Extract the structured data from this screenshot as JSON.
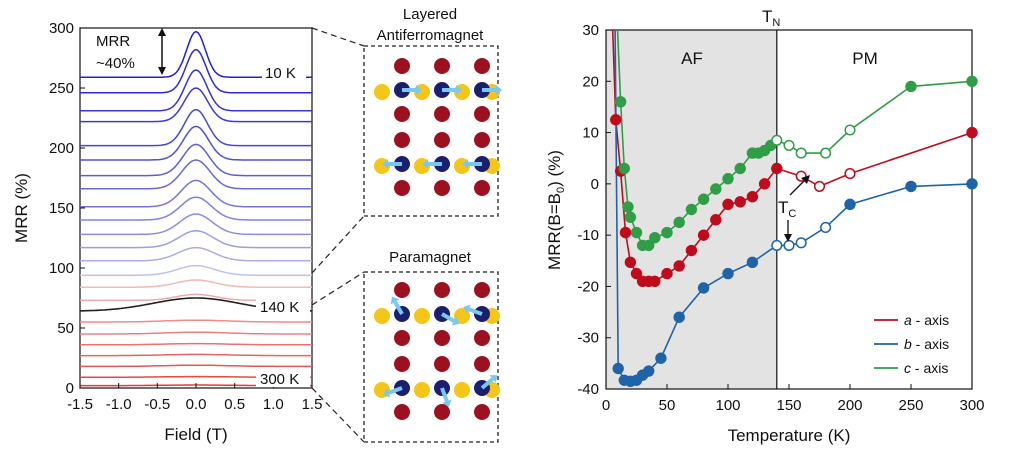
{
  "colors": {
    "red": "#c00b1c",
    "blue": "#1f63a8",
    "green": "#2f9e46",
    "af_shade": "#e3e3e3",
    "sphere_gold": "#f5c518",
    "sphere_navy": "#1a1f6e",
    "sphere_maroon": "#9c1020",
    "arrow_lightblue": "#79c8f0"
  },
  "chart_data": [
    {
      "type": "line",
      "xlabel": "Field (T)",
      "ylabel": "MRR (%)",
      "xlim": [
        -1.5,
        1.5
      ],
      "ylim": [
        0,
        300
      ],
      "xticks": [
        "-1.5",
        "-1.0",
        "-0.5",
        "0.0",
        "0.5",
        "1.0",
        "1.5"
      ],
      "yticks": [
        "0",
        "50",
        "100",
        "150",
        "200",
        "250",
        "300"
      ],
      "annotations": {
        "mrr_label": "MRR\n~40%",
        "label_10k": "10 K",
        "label_140k": "140 K",
        "label_300k": "300 K"
      },
      "series": [
        {
          "baseline": 259,
          "peak": 38,
          "width": 0.12,
          "color": "#2020d8"
        },
        {
          "baseline": 246,
          "peak": 36,
          "width": 0.13,
          "color": "#2a2ad8"
        },
        {
          "baseline": 231,
          "peak": 34,
          "width": 0.14,
          "color": "#3434d8"
        },
        {
          "baseline": 222,
          "peak": 28,
          "width": 0.15,
          "color": "#3b3bd6"
        },
        {
          "baseline": 202,
          "peak": 30,
          "width": 0.15,
          "color": "#4646d8"
        },
        {
          "baseline": 190,
          "peak": 28,
          "width": 0.16,
          "color": "#5050da"
        },
        {
          "baseline": 177,
          "peak": 26,
          "width": 0.17,
          "color": "#5c5cdc"
        },
        {
          "baseline": 166,
          "peak": 24,
          "width": 0.18,
          "color": "#6767de"
        },
        {
          "baseline": 151,
          "peak": 22,
          "width": 0.19,
          "color": "#7373e0"
        },
        {
          "baseline": 140,
          "peak": 19,
          "width": 0.2,
          "color": "#8080e2"
        },
        {
          "baseline": 128,
          "peak": 17,
          "width": 0.21,
          "color": "#8d8de6"
        },
        {
          "baseline": 117,
          "peak": 14,
          "width": 0.22,
          "color": "#9c9cea"
        },
        {
          "baseline": 106,
          "peak": 11,
          "width": 0.23,
          "color": "#ababee"
        },
        {
          "baseline": 94,
          "peak": 8,
          "width": 0.24,
          "color": "#c0c0f2"
        },
        {
          "baseline": 84,
          "peak": 6,
          "width": 0.25,
          "color": "#f2b8b8"
        },
        {
          "baseline": 73,
          "peak": 5,
          "width": 0.26,
          "color": "#eeaaaa"
        },
        {
          "baseline": 64,
          "peak": 11,
          "width": 0.55,
          "color": "#222222"
        },
        {
          "baseline": 55,
          "peak": 1.5,
          "width": 0.4,
          "color": "#f08c8c"
        },
        {
          "baseline": 45,
          "peak": 1.5,
          "width": 0.4,
          "color": "#ee8080"
        },
        {
          "baseline": 36,
          "peak": 1,
          "width": 0.4,
          "color": "#ec7272"
        },
        {
          "baseline": 27,
          "peak": 1,
          "width": 0.4,
          "color": "#ea6464"
        },
        {
          "baseline": 18,
          "peak": 1,
          "width": 0.4,
          "color": "#e85656"
        },
        {
          "baseline": 9,
          "peak": 0.5,
          "width": 0.4,
          "color": "#e64848"
        },
        {
          "baseline": 2,
          "peak": 0.5,
          "width": 0.4,
          "color": "#e43a3a"
        }
      ]
    },
    {
      "type": "line",
      "xlabel": "Temperature (K)",
      "ylabel": "MRR(B=B0) (%)",
      "xlim": [
        0,
        300
      ],
      "ylim": [
        -40,
        30
      ],
      "xticks": [
        "0",
        "50",
        "100",
        "150",
        "200",
        "250",
        "300"
      ],
      "yticks": [
        "-40",
        "-30",
        "-20",
        "-10",
        "0",
        "10",
        "20",
        "30"
      ],
      "regions": {
        "af_end": 140,
        "af_label": "AF",
        "pm_label": "PM",
        "tn_label": "TN",
        "tc_label": "TC"
      },
      "series": [
        {
          "name": "a - axis",
          "color": "#c00b1c",
          "filled": [
            [
              8,
              12.5
            ],
            [
              12,
              2.5
            ],
            [
              16,
              -9.5
            ],
            [
              20,
              -15.3
            ],
            [
              25,
              -17.5
            ],
            [
              30,
              -19
            ],
            [
              35,
              -19
            ],
            [
              40,
              -19
            ],
            [
              50,
              -17.5
            ],
            [
              60,
              -16
            ],
            [
              70,
              -13
            ],
            [
              80,
              -10
            ],
            [
              90,
              -7
            ],
            [
              100,
              -4
            ],
            [
              110,
              -3.5
            ],
            [
              120,
              -2.5
            ],
            [
              130,
              0
            ],
            [
              140,
              3
            ]
          ],
          "open": [
            [
              160,
              1.5
            ],
            [
              175,
              -0.5
            ],
            [
              200,
              2
            ]
          ],
          "filled_high": [
            [
              300,
              10
            ]
          ]
        },
        {
          "name": "b - axis",
          "color": "#1f63a8",
          "filled": [
            [
              10,
              -36
            ],
            [
              15,
              -38.3
            ],
            [
              20,
              -38.5
            ],
            [
              25,
              -38.3
            ],
            [
              30,
              -37.3
            ],
            [
              35,
              -36.5
            ],
            [
              45,
              -34
            ],
            [
              60,
              -26
            ],
            [
              80,
              -20.3
            ],
            [
              100,
              -17.5
            ],
            [
              120,
              -15.3
            ]
          ],
          "open": [
            [
              140,
              -12
            ],
            [
              150,
              -12
            ],
            [
              160,
              -11.5
            ],
            [
              180,
              -8.5
            ]
          ],
          "filled_high": [
            [
              200,
              -4
            ],
            [
              250,
              -0.5
            ],
            [
              300,
              0
            ]
          ]
        },
        {
          "name": "c - axis",
          "color": "#2f9e46",
          "filled": [
            [
              12,
              16
            ],
            [
              15,
              3
            ],
            [
              18,
              -4.5
            ],
            [
              20,
              -6.5
            ],
            [
              25,
              -9.5
            ],
            [
              30,
              -12
            ],
            [
              35,
              -12
            ],
            [
              40,
              -10.5
            ],
            [
              50,
              -9.5
            ],
            [
              60,
              -7.5
            ],
            [
              70,
              -5
            ],
            [
              80,
              -3
            ],
            [
              90,
              -1
            ],
            [
              100,
              1
            ],
            [
              110,
              3
            ],
            [
              120,
              6
            ],
            [
              125,
              6
            ],
            [
              130,
              6.5
            ],
            [
              135,
              7.5
            ]
          ],
          "open": [
            [
              140,
              8.5
            ],
            [
              150,
              7.5
            ],
            [
              160,
              6
            ],
            [
              180,
              6
            ],
            [
              200,
              10.5
            ]
          ],
          "filled_high": [
            [
              250,
              19
            ],
            [
              300,
              20
            ]
          ]
        }
      ]
    }
  ],
  "diagram": {
    "top_title_line1": "Layered",
    "top_title_line2": "Antiferromagnet",
    "bottom_title": "Paramagnet"
  }
}
